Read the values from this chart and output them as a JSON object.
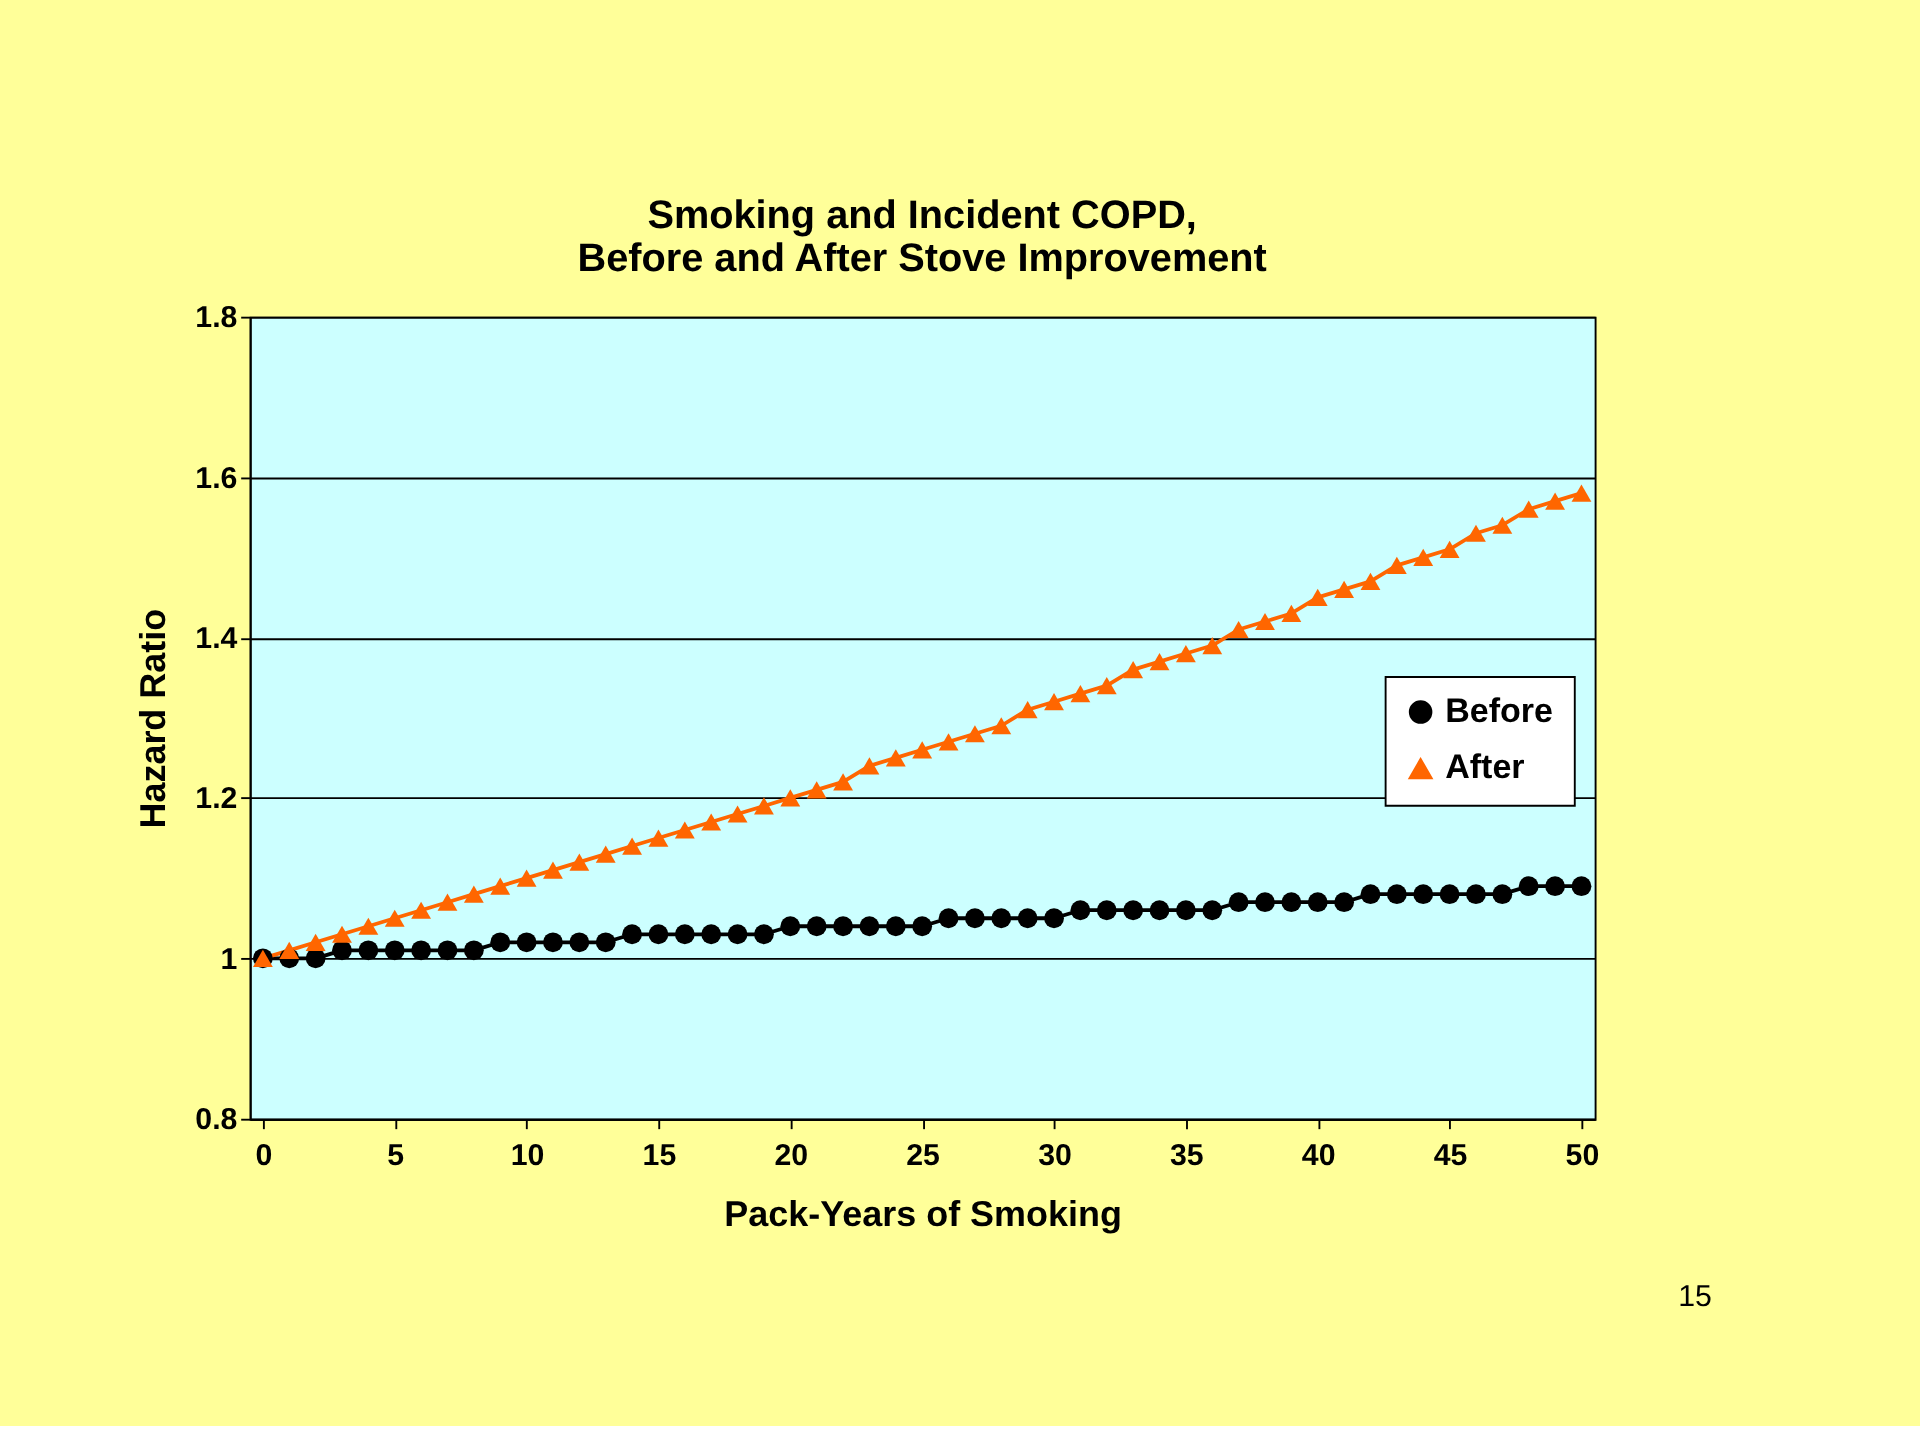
{
  "chart_data": {
    "type": "line",
    "title": "Smoking and Incident COPD,\nBefore and After Stove Improvement",
    "xlabel": "Pack-Years of Smoking",
    "ylabel": "Hazard Ratio",
    "x": [
      0,
      1,
      2,
      3,
      4,
      5,
      6,
      7,
      8,
      9,
      10,
      11,
      12,
      13,
      14,
      15,
      16,
      17,
      18,
      19,
      20,
      21,
      22,
      23,
      24,
      25,
      26,
      27,
      28,
      29,
      30,
      31,
      32,
      33,
      34,
      35,
      36,
      37,
      38,
      39,
      40,
      41,
      42,
      43,
      44,
      45,
      46,
      47,
      48,
      49,
      50
    ],
    "series": [
      {
        "name": "Before",
        "color": "#000000",
        "marker": "circle",
        "values": [
          1.0,
          1.0,
          1.0,
          1.01,
          1.01,
          1.01,
          1.01,
          1.01,
          1.01,
          1.02,
          1.02,
          1.02,
          1.02,
          1.02,
          1.03,
          1.03,
          1.03,
          1.03,
          1.03,
          1.03,
          1.04,
          1.04,
          1.04,
          1.04,
          1.04,
          1.04,
          1.05,
          1.05,
          1.05,
          1.05,
          1.05,
          1.06,
          1.06,
          1.06,
          1.06,
          1.06,
          1.06,
          1.07,
          1.07,
          1.07,
          1.07,
          1.07,
          1.08,
          1.08,
          1.08,
          1.08,
          1.08,
          1.08,
          1.09,
          1.09,
          1.09
        ]
      },
      {
        "name": "After",
        "color": "#ff6600",
        "marker": "triangle",
        "values": [
          1.0,
          1.01,
          1.02,
          1.03,
          1.04,
          1.05,
          1.06,
          1.07,
          1.08,
          1.09,
          1.1,
          1.11,
          1.12,
          1.13,
          1.14,
          1.15,
          1.16,
          1.17,
          1.18,
          1.19,
          1.2,
          1.21,
          1.22,
          1.24,
          1.25,
          1.26,
          1.27,
          1.28,
          1.29,
          1.31,
          1.32,
          1.33,
          1.34,
          1.36,
          1.37,
          1.38,
          1.39,
          1.41,
          1.42,
          1.43,
          1.45,
          1.46,
          1.47,
          1.49,
          1.5,
          1.51,
          1.53,
          1.54,
          1.56,
          1.57,
          1.58
        ]
      }
    ],
    "xlim": [
      -0.5,
      50.5
    ],
    "xticks": [
      0,
      5,
      10,
      15,
      20,
      25,
      30,
      35,
      40,
      45,
      50
    ],
    "ylim": [
      0.8,
      1.8
    ],
    "yticks": [
      {
        "value": 0.8,
        "label": "0.8"
      },
      1,
      1.2,
      1.4,
      1.6,
      1.8
    ],
    "grid": "y",
    "legend": "right",
    "line_style": "solid",
    "annotations": [
      "15"
    ]
  }
}
